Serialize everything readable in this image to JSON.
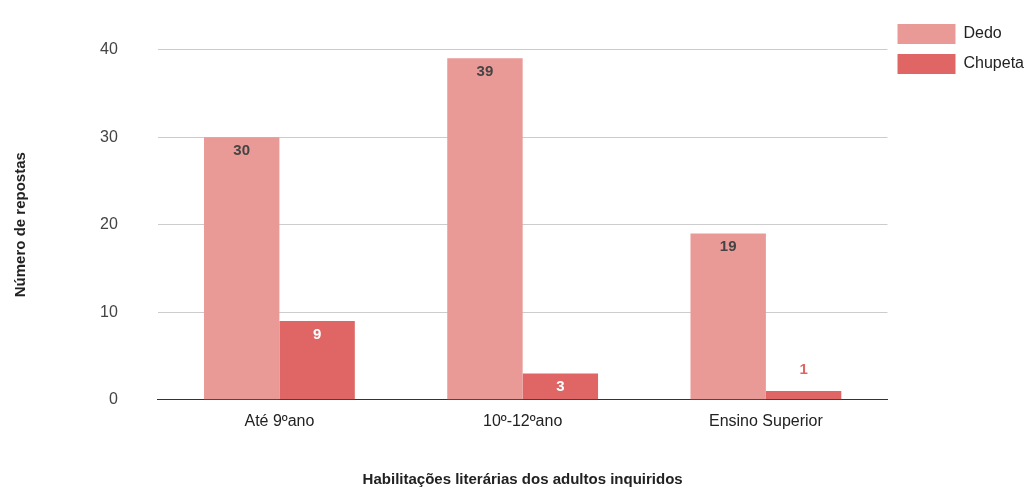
{
  "chart_data": {
    "type": "bar",
    "xlabel": "Habilitações literárias dos adultos inquiridos",
    "ylabel": "Número de repostas",
    "categories": [
      "Até 9ºano",
      "10º-12ºano",
      "Ensino Superior"
    ],
    "series": [
      {
        "name": "Dedo",
        "color": "#e99a97",
        "values": [
          30,
          39,
          19
        ]
      },
      {
        "name": "Chupeta",
        "color": "#e06666",
        "values": [
          9,
          3,
          1
        ]
      }
    ],
    "ylim": [
      0,
      40
    ],
    "yticks": [
      0,
      10,
      20,
      30,
      40
    ],
    "grid": "y",
    "legend": "top right",
    "data_labels": true
  }
}
